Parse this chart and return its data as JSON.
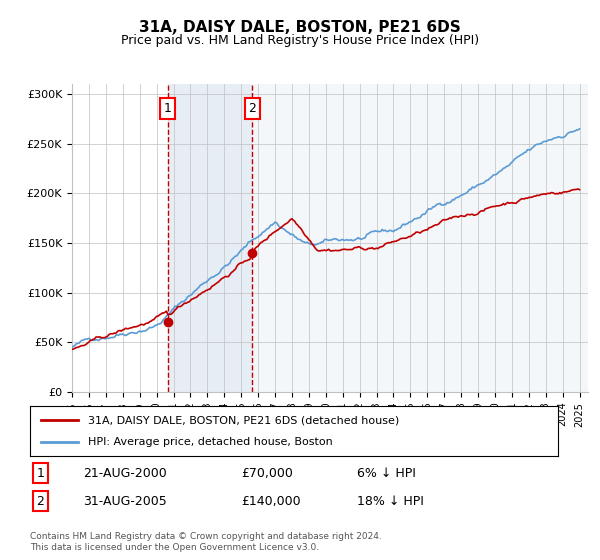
{
  "title": "31A, DAISY DALE, BOSTON, PE21 6DS",
  "subtitle": "Price paid vs. HM Land Registry's House Price Index (HPI)",
  "footnote": "Contains HM Land Registry data © Crown copyright and database right 2024.\nThis data is licensed under the Open Government Licence v3.0.",
  "legend_line1": "31A, DAISY DALE, BOSTON, PE21 6DS (detached house)",
  "legend_line2": "HPI: Average price, detached house, Boston",
  "sale1_label": "1",
  "sale1_date": "21-AUG-2000",
  "sale1_price": "£70,000",
  "sale1_hpi": "6% ↓ HPI",
  "sale2_label": "2",
  "sale2_date": "31-AUG-2005",
  "sale2_price": "£140,000",
  "sale2_hpi": "18% ↓ HPI",
  "sale1_x": 2000.646,
  "sale2_x": 2005.664,
  "sale1_y": 70000,
  "sale2_y": 140000,
  "hpi_color": "#5b9bd5",
  "price_color": "#c00000",
  "shade_color": "#dce6f1",
  "grid_color": "#c0c0c0",
  "bg_color": "#ffffff",
  "ylim": [
    0,
    310000
  ],
  "xlim_start": 1995.0,
  "xlim_end": 2025.5
}
